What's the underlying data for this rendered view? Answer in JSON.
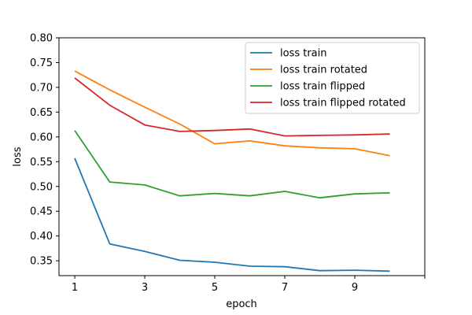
{
  "chart_data": {
    "type": "line",
    "title": "",
    "xlabel": "epoch",
    "ylabel": "loss",
    "x": [
      1,
      2,
      3,
      4,
      5,
      6,
      7,
      8,
      9,
      10
    ],
    "xlim": [
      0.55,
      11
    ],
    "ylim": [
      0.32,
      0.8
    ],
    "xticks": [
      1,
      3,
      5,
      7,
      9,
      11
    ],
    "xtick_labels": [
      "1",
      "3",
      "5",
      "7",
      "9",
      ""
    ],
    "yticks": [
      0.35,
      0.4,
      0.45,
      0.5,
      0.55,
      0.6,
      0.65,
      0.7,
      0.75,
      0.8
    ],
    "ytick_labels": [
      "0.35",
      "0.40",
      "0.45",
      "0.50",
      "0.55",
      "0.60",
      "0.65",
      "0.70",
      "0.75",
      "0.80"
    ],
    "grid": false,
    "legend_position": "top-right",
    "series": [
      {
        "name": "loss train",
        "color": "#1f77b4",
        "values": [
          0.557,
          0.384,
          0.369,
          0.351,
          0.347,
          0.339,
          0.338,
          0.33,
          0.331,
          0.329
        ]
      },
      {
        "name": "loss train rotated",
        "color": "#ff7f0e",
        "values": [
          0.733,
          0.695,
          0.66,
          0.626,
          0.586,
          0.592,
          0.582,
          0.578,
          0.576,
          0.562
        ]
      },
      {
        "name": "loss train flipped",
        "color": "#2ca02c",
        "values": [
          0.613,
          0.509,
          0.503,
          0.481,
          0.486,
          0.481,
          0.49,
          0.477,
          0.485,
          0.487
        ]
      },
      {
        "name": "loss train flipped rotated",
        "color": "#d62728",
        "values": [
          0.719,
          0.664,
          0.624,
          0.611,
          0.613,
          0.616,
          0.602,
          0.603,
          0.604,
          0.606
        ]
      }
    ]
  }
}
